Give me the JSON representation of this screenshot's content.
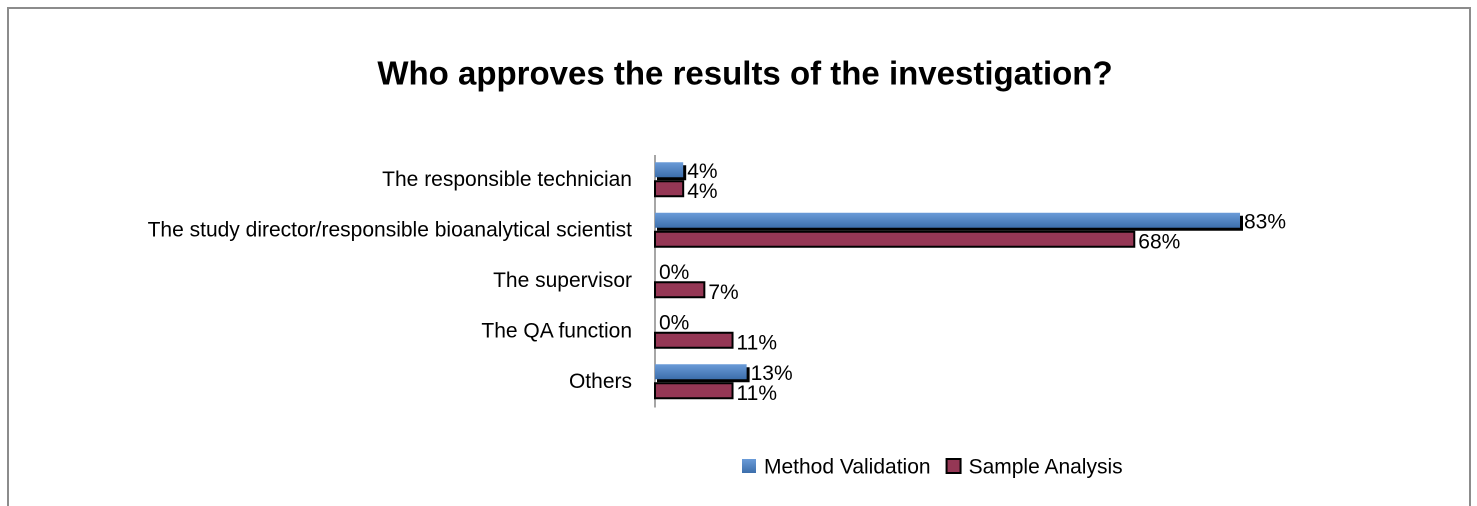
{
  "chart_data": {
    "type": "bar",
    "orientation": "horizontal",
    "title": "Who approves the results of the investigation?",
    "categories": [
      "The responsible technician",
      "The study director/responsible bioanalytical scientist",
      "The supervisor",
      "The QA function",
      "Others"
    ],
    "series": [
      {
        "name": "Method Validation",
        "color": "#4f81bd",
        "values": [
          4,
          83,
          0,
          0,
          13
        ],
        "value_labels": [
          "4%",
          "83%",
          "0%",
          "0%",
          "13%"
        ]
      },
      {
        "name": "Sample Analysis",
        "color": "#953755",
        "values": [
          4,
          68,
          7,
          11,
          11
        ],
        "value_labels": [
          "4%",
          "68%",
          "7%",
          "11%",
          "11%"
        ]
      }
    ],
    "legend": "bottom"
  }
}
